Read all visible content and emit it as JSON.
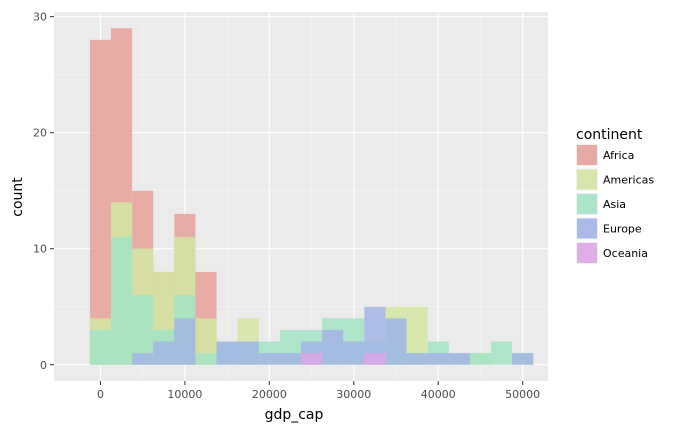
{
  "chart_data": {
    "type": "histogram",
    "stacking": "overlay",
    "bin_width": 2500,
    "bin_starts": [
      -1250,
      1250,
      3750,
      6250,
      8750,
      11250,
      13750,
      16250,
      18750,
      21250,
      23750,
      26250,
      28750,
      31250,
      33750,
      36250,
      38750,
      41250,
      43750,
      46250,
      48750
    ],
    "xlabel": "gdp_cap",
    "ylabel": "count",
    "xlim": [
      -5500,
      53000
    ],
    "ylim": [
      -1.4,
      30.4
    ],
    "x_ticks": [
      0,
      10000,
      20000,
      30000,
      40000,
      50000
    ],
    "x_tick_labels": [
      "0",
      "10000",
      "20000",
      "30000",
      "40000",
      "50000"
    ],
    "y_ticks": [
      0,
      10,
      20,
      30
    ],
    "y_tick_labels": [
      "0",
      "10",
      "20",
      "30"
    ],
    "grid": true,
    "legend": {
      "title": "continent",
      "position": "right"
    },
    "series": [
      {
        "name": "Africa",
        "color": "#e7a19a",
        "values": [
          28,
          29,
          15,
          8,
          13,
          8,
          0,
          0,
          0,
          0,
          0,
          0,
          0,
          0,
          0,
          0,
          0,
          0,
          0,
          0,
          0
        ]
      },
      {
        "name": "Americas",
        "color": "#d4e6a3",
        "values": [
          4,
          14,
          10,
          8,
          11,
          4,
          0,
          4,
          0,
          0,
          0,
          0,
          0,
          0,
          5,
          5,
          0,
          0,
          1,
          0,
          0
        ]
      },
      {
        "name": "Asia",
        "color": "#a3e3c4",
        "values": [
          3,
          11,
          6,
          3,
          6,
          1,
          2,
          2,
          2,
          3,
          3,
          4,
          4,
          2,
          4,
          1,
          2,
          1,
          1,
          2,
          1
        ]
      },
      {
        "name": "Europe",
        "color": "#a3b5e6",
        "values": [
          0,
          0,
          1,
          2,
          4,
          0,
          2,
          2,
          1,
          1,
          2,
          3,
          2,
          5,
          4,
          1,
          1,
          1,
          0,
          0,
          1
        ]
      },
      {
        "name": "Oceania",
        "color": "#dea5e8",
        "values": [
          0,
          0,
          0,
          0,
          0,
          0,
          0,
          0,
          0,
          0,
          1,
          0,
          0,
          1,
          0,
          0,
          0,
          0,
          0,
          0,
          0
        ]
      }
    ]
  }
}
